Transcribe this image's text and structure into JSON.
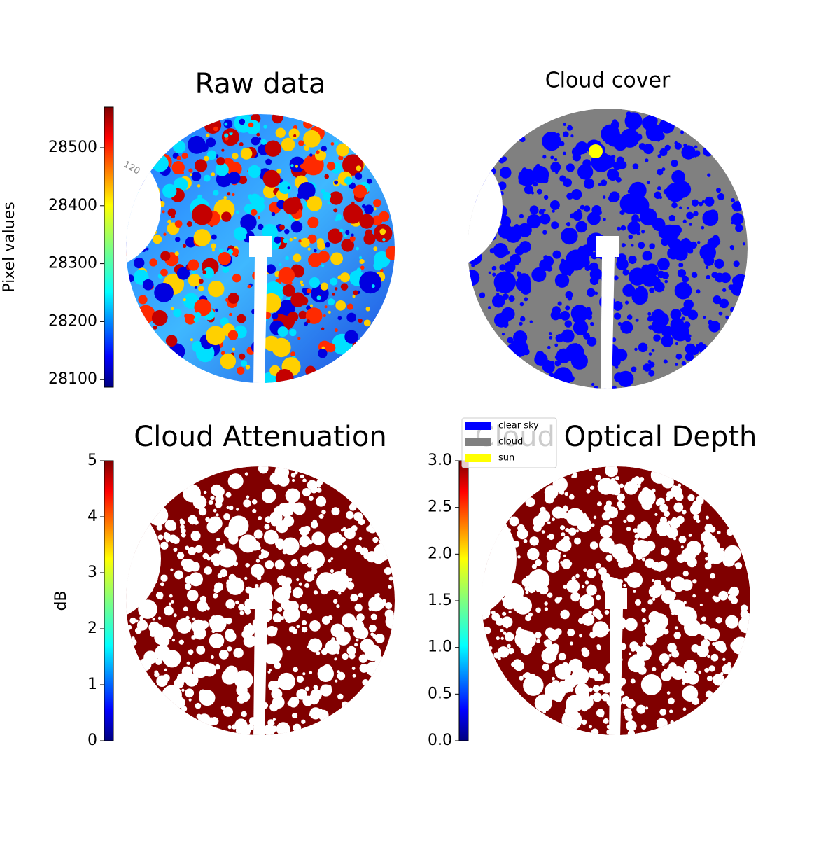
{
  "chart_data": [
    {
      "type": "image",
      "title": "Raw data",
      "ylabel": "Pixel values",
      "ylim": [
        28087,
        28570
      ],
      "yticks": [
        28100,
        28200,
        28300,
        28400,
        28500
      ],
      "colormap": "jet",
      "annotations": [
        "120"
      ]
    },
    {
      "type": "image",
      "title": "Cloud cover",
      "series": [
        {
          "name": "clear sky",
          "color": "#0000ff"
        },
        {
          "name": "cloud",
          "color": "#808080"
        },
        {
          "name": "sun",
          "color": "#ffff00"
        }
      ]
    },
    {
      "type": "image",
      "title": "Cloud Attenuation",
      "ylabel": "dB",
      "ylim": [
        0,
        5
      ],
      "yticks": [
        0,
        1,
        2,
        3,
        4,
        5
      ],
      "colormap": "jet"
    },
    {
      "type": "image",
      "title": "Cloud Optical Depth",
      "ylim": [
        0,
        3
      ],
      "yticks": [
        {
          "value": 0,
          "label": "0.0"
        },
        0.5,
        {
          "value": 1,
          "label": "1.0"
        },
        1.5,
        {
          "value": 2,
          "label": "2.0"
        },
        2.5,
        {
          "value": 3,
          "label": "3.0"
        }
      ],
      "colormap": "jet"
    }
  ]
}
